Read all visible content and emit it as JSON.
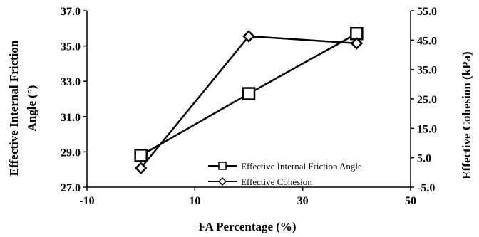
{
  "chart_data": {
    "type": "line",
    "title": "",
    "xlabel": "FA Percentage (%)",
    "ylabel": "Effective Internal Friction Angle (°)",
    "y2label": "Effective Cohesion (kPa)",
    "xlim": [
      -10,
      50
    ],
    "ylim": [
      27,
      37
    ],
    "y2lim": [
      -5,
      55
    ],
    "x_ticks": [
      "-10",
      "10",
      "30",
      "50"
    ],
    "y_ticks": [
      "27.0",
      "29.0",
      "31.0",
      "33.0",
      "35.0",
      "37.0"
    ],
    "y2_ticks": [
      "-5.0",
      "5.0",
      "15.0",
      "25.0",
      "35.0",
      "45.0",
      "55.0"
    ],
    "x_tick_values": [
      -10,
      10,
      30,
      50
    ],
    "y_tick_values": [
      27,
      29,
      31,
      33,
      35,
      37
    ],
    "y2_tick_values": [
      -5,
      5,
      15,
      25,
      35,
      45,
      55
    ],
    "grid": false,
    "legend_position": "lower-right",
    "series": [
      {
        "name": "Effective Internal Friction Angle",
        "axis": "left",
        "marker": "square",
        "color": "#000000",
        "x": [
          0,
          20,
          40
        ],
        "y": [
          28.8,
          32.3,
          35.7
        ]
      },
      {
        "name": "Effective Cohesion",
        "axis": "right",
        "marker": "diamond",
        "color": "#000000",
        "x": [
          0,
          20,
          40
        ],
        "y": [
          1.5,
          46.3,
          43.9
        ]
      }
    ]
  }
}
